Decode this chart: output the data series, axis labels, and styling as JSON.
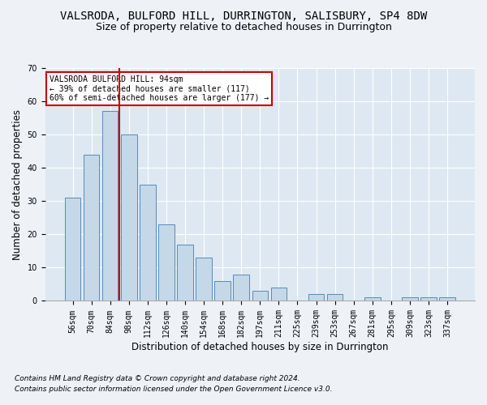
{
  "title": "VALSRODA, BULFORD HILL, DURRINGTON, SALISBURY, SP4 8DW",
  "subtitle": "Size of property relative to detached houses in Durrington",
  "xlabel": "Distribution of detached houses by size in Durrington",
  "ylabel": "Number of detached properties",
  "categories": [
    "56sqm",
    "70sqm",
    "84sqm",
    "98sqm",
    "112sqm",
    "126sqm",
    "140sqm",
    "154sqm",
    "168sqm",
    "182sqm",
    "197sqm",
    "211sqm",
    "225sqm",
    "239sqm",
    "253sqm",
    "267sqm",
    "281sqm",
    "295sqm",
    "309sqm",
    "323sqm",
    "337sqm"
  ],
  "values": [
    31,
    44,
    57,
    50,
    35,
    23,
    17,
    13,
    6,
    8,
    3,
    4,
    0,
    2,
    2,
    0,
    1,
    0,
    1,
    1,
    1
  ],
  "bar_color": "#c5d8e8",
  "bar_edge_color": "#5a8ab5",
  "vline_color": "#cc0000",
  "annotation_text": "VALSRODA BULFORD HILL: 94sqm\n← 39% of detached houses are smaller (117)\n60% of semi-detached houses are larger (177) →",
  "annotation_box_color": "#ffffff",
  "annotation_box_edge": "#cc0000",
  "ylim": [
    0,
    70
  ],
  "yticks": [
    0,
    10,
    20,
    30,
    40,
    50,
    60,
    70
  ],
  "footer1": "Contains HM Land Registry data © Crown copyright and database right 2024.",
  "footer2": "Contains public sector information licensed under the Open Government Licence v3.0.",
  "bg_color": "#eef2f7",
  "plot_bg_color": "#dde8f2",
  "title_fontsize": 10,
  "subtitle_fontsize": 9,
  "axis_label_fontsize": 8.5,
  "tick_fontsize": 7,
  "footer_fontsize": 6.5
}
